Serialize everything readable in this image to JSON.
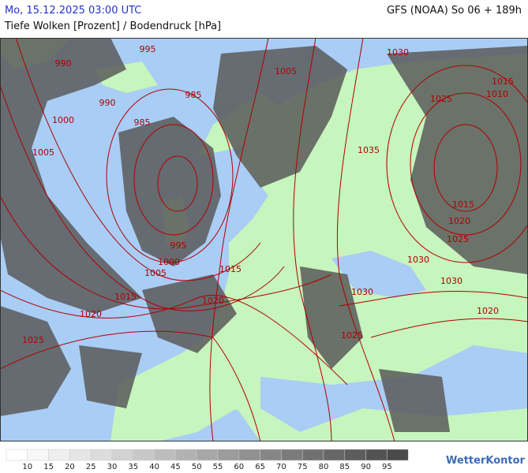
{
  "header": {
    "datetime": "Mo, 15.12.2025 03:00 UTC",
    "model": "GFS (NOAA) So 06 + 189h",
    "subtitle": "Tiefe Wolken [Prozent] / Bodendruck [hPa]"
  },
  "isobar_labels": [
    990,
    995,
    985,
    990,
    1000,
    985,
    1005,
    995,
    1000,
    1005,
    1015,
    1020,
    1025,
    1005,
    1030,
    1025,
    1015,
    1010,
    1035,
    1015,
    1020,
    1025,
    1030,
    1030,
    1030,
    1015,
    1020,
    1020,
    1025
  ],
  "legend": {
    "labels": [
      10,
      15,
      20,
      25,
      30,
      35,
      40,
      45,
      50,
      55,
      60,
      65,
      70,
      75,
      80,
      85,
      90,
      95
    ],
    "colors": [
      "#ffffff",
      "#f7f7f7",
      "#efefef",
      "#e6e6e6",
      "#dcdcdc",
      "#d2d2d2",
      "#c8c8c8",
      "#bdbdbd",
      "#b2b2b2",
      "#a7a7a7",
      "#9c9c9c",
      "#919191",
      "#868686",
      "#7b7b7b",
      "#707070",
      "#666666",
      "#5c5c5c",
      "#535353",
      "#4a4a4a"
    ]
  },
  "logo": "WetterKontor"
}
